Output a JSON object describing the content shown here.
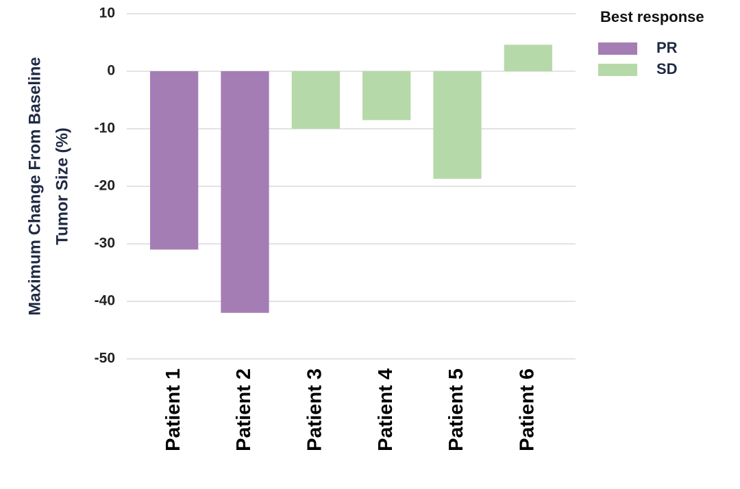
{
  "chart_data": {
    "type": "bar",
    "ylabel": [
      "Maximum Change From Baseline",
      "Tumor Size (%)"
    ],
    "categories": [
      "Patient 1",
      "Patient 2",
      "Patient 3",
      "Patient 4",
      "Patient 5",
      "Patient 6"
    ],
    "series": [
      {
        "name": "PR",
        "color": "#a57db5",
        "values": [
          -31,
          -42,
          null,
          null,
          null,
          null
        ]
      },
      {
        "name": "SD",
        "color": "#b6d9a9",
        "values": [
          null,
          null,
          -10,
          -8.5,
          -18.7,
          4.6
        ]
      }
    ],
    "legend_title": "Best response",
    "legend": "right",
    "ylim": [
      -50,
      10
    ],
    "yticks": [
      -50,
      -40,
      -30,
      -20,
      -10,
      0,
      10
    ],
    "grid": true
  }
}
